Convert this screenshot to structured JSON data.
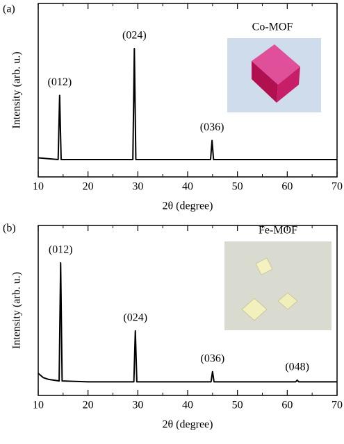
{
  "chart_data": [
    {
      "type": "line",
      "panel_label": "(a)",
      "sample": "Co-MOF",
      "color": "#000000",
      "xlabel": "2θ (degree)",
      "ylabel": "Intensity (arb. u.)",
      "xlim": [
        10,
        70
      ],
      "xticks": [
        10,
        20,
        30,
        40,
        50,
        60,
        70
      ],
      "xminorticks": [
        15,
        25,
        35,
        45,
        55,
        65
      ],
      "ylim": [
        0,
        100
      ],
      "x": [
        10,
        12,
        14.0,
        14.3,
        14.6,
        20,
        29.0,
        29.3,
        29.6,
        40,
        44.6,
        44.9,
        45.2,
        55,
        70
      ],
      "values": [
        11,
        10.5,
        10,
        47,
        10,
        10,
        10,
        74,
        10,
        10,
        10,
        21,
        10,
        10,
        10
      ],
      "annotations": [
        "(012)",
        "(024)",
        "(036)"
      ]
    },
    {
      "type": "line",
      "panel_label": "(b)",
      "sample": "Fe-MOF",
      "color": "#000000",
      "xlabel": "2θ (degree)",
      "ylabel": "Intensity (arb. u.)",
      "xlim": [
        10,
        70
      ],
      "xticks": [
        10,
        20,
        30,
        40,
        50,
        60,
        70
      ],
      "xminorticks": [
        15,
        25,
        35,
        45,
        55,
        65
      ],
      "ylim": [
        0,
        100
      ],
      "x": [
        10,
        11,
        12,
        14.2,
        14.5,
        14.8,
        20,
        29.2,
        29.5,
        29.8,
        40,
        44.7,
        45,
        45.3,
        61.7,
        62,
        62.3,
        70
      ],
      "values": [
        13,
        10.5,
        9.5,
        8.5,
        78,
        8.5,
        8,
        8,
        38,
        8,
        8,
        8,
        14,
        8,
        8,
        9,
        8,
        8
      ],
      "annotations": [
        "(012)",
        "(024)",
        "(036)",
        "(048)"
      ]
    }
  ]
}
